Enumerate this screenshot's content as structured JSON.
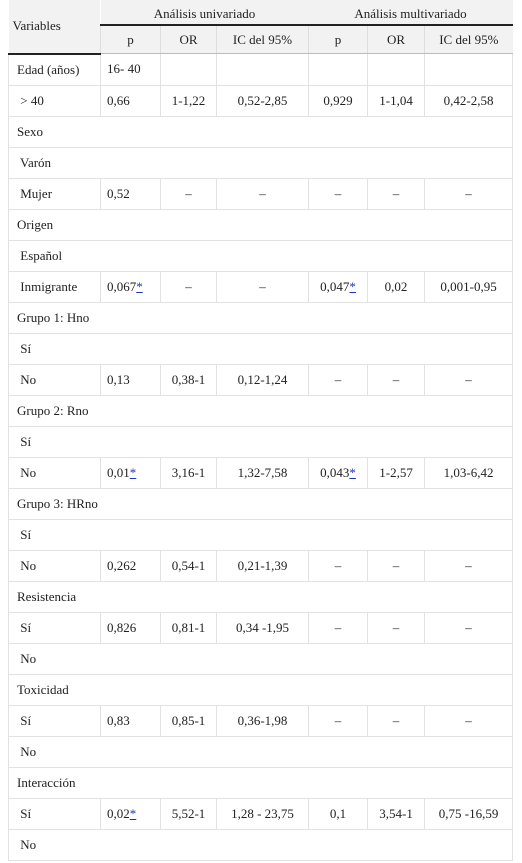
{
  "table": {
    "header": {
      "variables": "Variables",
      "groups": [
        "Análisis univariado",
        "Análisis multivariado"
      ],
      "columns": [
        "p",
        "OR",
        "IC del 95%",
        "p",
        "OR",
        "IC del 95%"
      ]
    },
    "rows": [
      [
        "Edad (años)",
        "16- 40",
        null,
        null,
        null,
        null,
        null
      ],
      [
        " > 40",
        "0,66",
        "1-1,22",
        "0,52-2,85",
        "0,929",
        "1-1,04",
        "0,42-2,58"
      ],
      [
        "Sexo"
      ],
      [
        " Varón"
      ],
      [
        " Mujer",
        "0,52",
        "–",
        "–",
        "–",
        "–",
        "–"
      ],
      [
        "Origen"
      ],
      [
        " Español"
      ],
      [
        " Inmigrante",
        {
          "text": "0,067",
          "note": "*"
        },
        "–",
        "–",
        {
          "text": "0,047",
          "note": "*"
        },
        "0,02",
        "0,001-0,95"
      ],
      [
        "Grupo 1: Hno"
      ],
      [
        " Sí"
      ],
      [
        " No",
        "0,13",
        "0,38-1",
        "0,12-1,24",
        "–",
        "–",
        "–"
      ],
      [
        "Grupo 2: Rno"
      ],
      [
        " Sí"
      ],
      [
        " No",
        {
          "text": "0,01",
          "note": "*"
        },
        "3,16-1",
        "1,32-7,58",
        {
          "text": "0,043",
          "note": "*"
        },
        "1-2,57",
        "1,03-6,42"
      ],
      [
        "Grupo 3: HRno"
      ],
      [
        " Sí"
      ],
      [
        " No",
        "0,262",
        "0,54-1",
        "0,21-1,39",
        "–",
        "–",
        "–"
      ],
      [
        "Resistencia"
      ],
      [
        " Sí",
        "0,826",
        "0,81-1",
        "0,34 -1,95",
        "–",
        "–",
        "–"
      ],
      [
        " No"
      ],
      [
        "Toxicidad"
      ],
      [
        " Sí",
        "0,83",
        "0,85-1",
        "0,36-1,98",
        "–",
        "–",
        "–"
      ],
      [
        " No"
      ],
      [
        "Interacción"
      ],
      [
        " Sí",
        {
          "text": "0,02",
          "note": "*"
        },
        "5,52-1",
        "1,28 - 23,75",
        "0,1",
        "3,54-1",
        "0,75 -16,59"
      ],
      [
        " No"
      ]
    ]
  }
}
